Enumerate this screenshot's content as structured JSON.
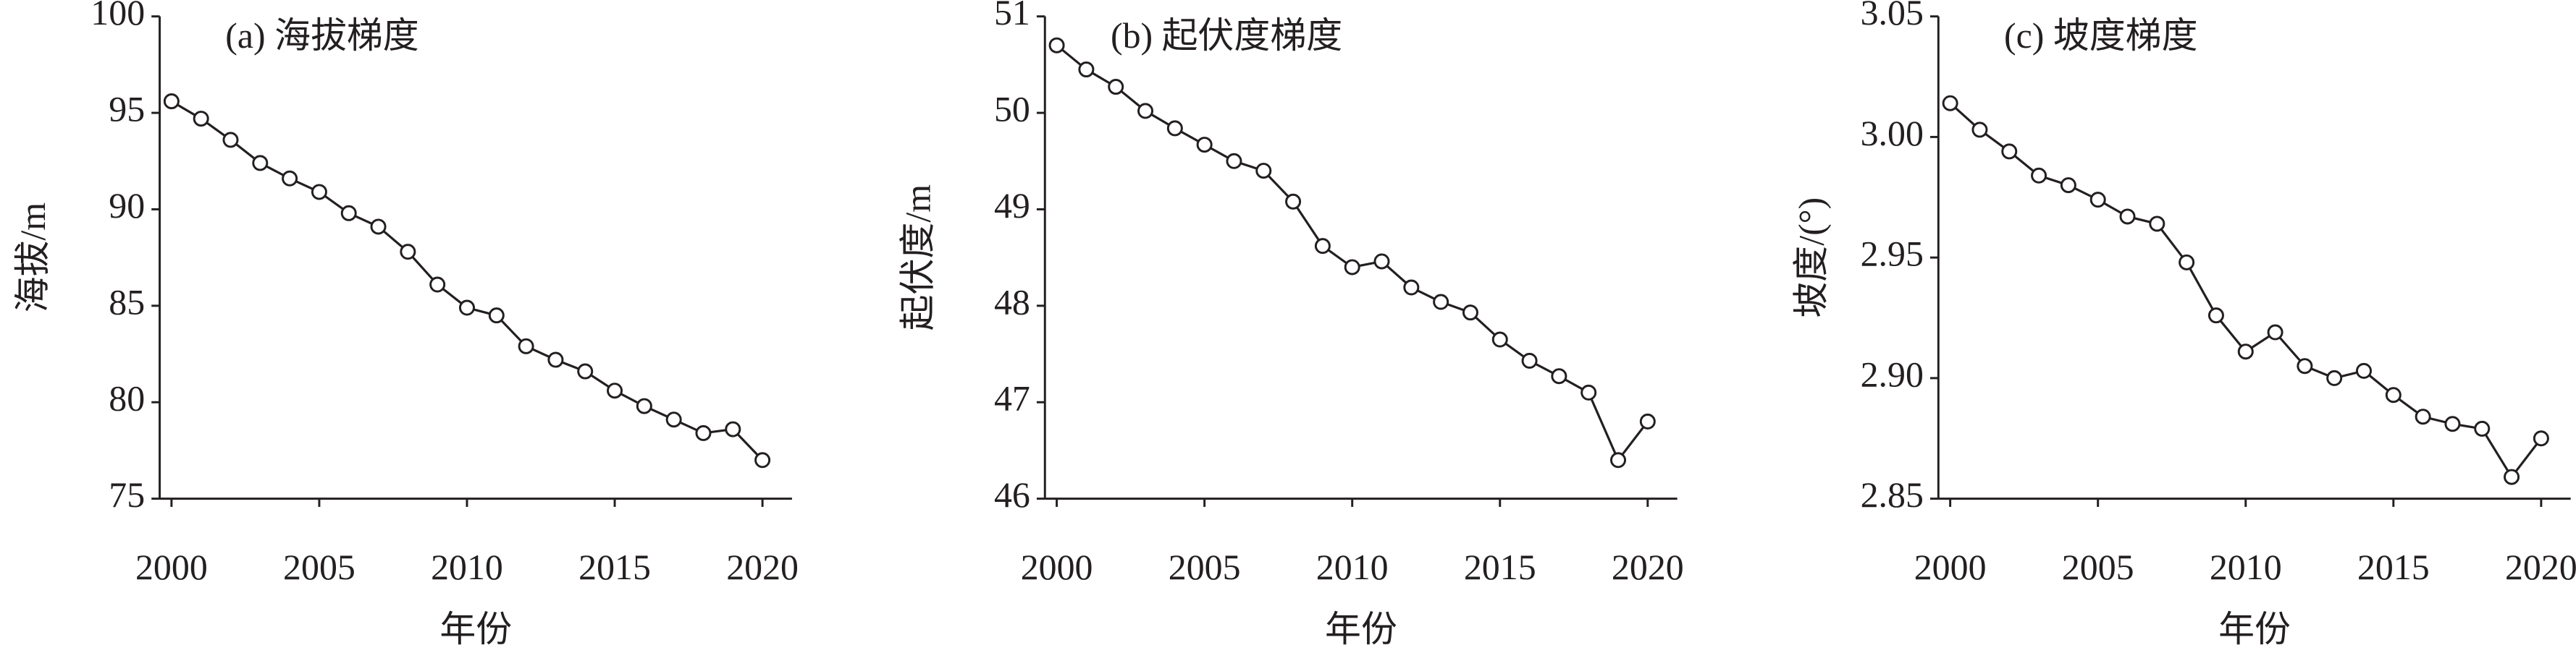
{
  "chart_data": [
    {
      "type": "line",
      "title": "(a) 海拔梯度",
      "x_label": "年份",
      "y_label": "海拔/m",
      "color": "#231f20",
      "x": [
        2000,
        2001,
        2002,
        2003,
        2004,
        2005,
        2006,
        2007,
        2008,
        2009,
        2010,
        2011,
        2012,
        2013,
        2014,
        2015,
        2016,
        2017,
        2018,
        2019,
        2020
      ],
      "values": [
        95.6,
        94.7,
        93.6,
        92.4,
        91.6,
        90.9,
        89.8,
        89.1,
        87.8,
        86.1,
        84.9,
        84.5,
        82.9,
        82.2,
        81.6,
        80.6,
        79.8,
        79.1,
        78.4,
        78.6,
        77.0
      ],
      "xlim": [
        1999.6,
        2021
      ],
      "xticks": [
        2000,
        2005,
        2010,
        2015,
        2020
      ],
      "ylim": [
        75,
        100
      ],
      "yticks": [
        75,
        80,
        85,
        90,
        95,
        100
      ]
    },
    {
      "type": "line",
      "title": "(b) 起伏度梯度",
      "x_label": "年份",
      "y_label": "起伏度/m",
      "color": "#231f20",
      "x": [
        2000,
        2001,
        2002,
        2003,
        2004,
        2005,
        2006,
        2007,
        2008,
        2009,
        2010,
        2011,
        2012,
        2013,
        2014,
        2015,
        2016,
        2017,
        2018,
        2019,
        2020
      ],
      "values": [
        50.7,
        50.45,
        50.27,
        50.02,
        49.84,
        49.67,
        49.5,
        49.4,
        49.08,
        48.62,
        48.4,
        48.46,
        48.19,
        48.04,
        47.93,
        47.65,
        47.43,
        47.27,
        47.1,
        46.4,
        46.8
      ],
      "xlim": [
        1999.6,
        2021
      ],
      "xticks": [
        2000,
        2005,
        2010,
        2015,
        2020
      ],
      "ylim": [
        46,
        51
      ],
      "yticks": [
        46,
        47,
        48,
        49,
        50,
        51
      ]
    },
    {
      "type": "line",
      "title": "(c) 坡度梯度",
      "x_label": "年份",
      "y_label": "坡度/(°)",
      "color": "#231f20",
      "x": [
        2000,
        2001,
        2002,
        2003,
        2004,
        2005,
        2006,
        2007,
        2008,
        2009,
        2010,
        2011,
        2012,
        2013,
        2014,
        2015,
        2016,
        2017,
        2018,
        2019,
        2020
      ],
      "values": [
        3.014,
        3.003,
        2.994,
        2.984,
        2.98,
        2.974,
        2.967,
        2.964,
        2.948,
        2.926,
        2.911,
        2.919,
        2.905,
        2.9,
        2.903,
        2.893,
        2.884,
        2.881,
        2.879,
        2.859,
        2.875
      ],
      "xlim": [
        1999.6,
        2021
      ],
      "xticks": [
        2000,
        2005,
        2010,
        2015,
        2020
      ],
      "ylim": [
        2.85,
        3.05
      ],
      "yticks": [
        2.85,
        {
          "value": 2.9,
          "label": "2.90"
        },
        2.95,
        {
          "value": 3,
          "label": "3.00"
        },
        3.05
      ]
    }
  ]
}
